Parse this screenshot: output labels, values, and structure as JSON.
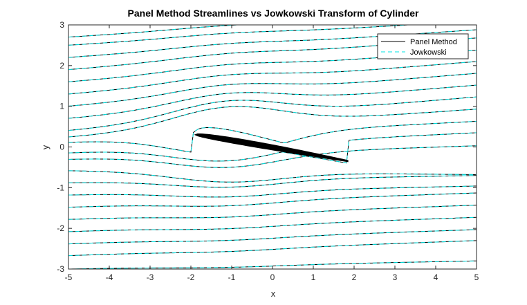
{
  "chart_data": {
    "type": "line",
    "title": "Panel Method Streamlines vs Jowkowski Transform of Cylinder",
    "xlabel": "x",
    "ylabel": "y",
    "xlim": [
      -5,
      5
    ],
    "ylim": [
      -3,
      3
    ],
    "x_ticks": [
      "-5",
      "-4",
      "-3",
      "-2",
      "-1",
      "0",
      "1",
      "2",
      "3",
      "4",
      "5"
    ],
    "y_ticks": [
      "-3",
      "-2",
      "-1",
      "0",
      "1",
      "2",
      "3"
    ],
    "grid": false,
    "legend": {
      "placement": "top-right",
      "entries": [
        {
          "name": "Panel Method",
          "color": "#000000",
          "style": "solid"
        },
        {
          "name": "Jowkowski",
          "color": "#00e5e5",
          "style": "dashed"
        }
      ]
    },
    "streamline_start_y": [
      -3.0,
      -2.67,
      -2.38,
      -2.08,
      -1.78,
      -1.48,
      -1.18,
      -0.88,
      -0.58,
      -0.3,
      -0.14,
      0.12,
      0.24,
      0.4,
      0.7,
      1.0,
      1.3,
      1.6,
      1.9,
      2.2,
      2.5,
      2.7
    ],
    "streamline_end_y": [
      -2.8,
      -2.3,
      -2.03,
      -1.73,
      -1.43,
      -1.13,
      -0.96,
      -0.7,
      -0.68,
      0.03,
      0.35,
      0.63,
      0.93,
      1.23,
      1.52,
      1.81,
      2.1,
      2.38,
      2.68,
      2.88,
      3.1,
      3.3
    ],
    "airfoil": {
      "leading_edge": [
        -1.9,
        0.3
      ],
      "trailing_edge": [
        1.85,
        -0.35
      ],
      "thickness": 0.25,
      "color": "#000000"
    }
  }
}
